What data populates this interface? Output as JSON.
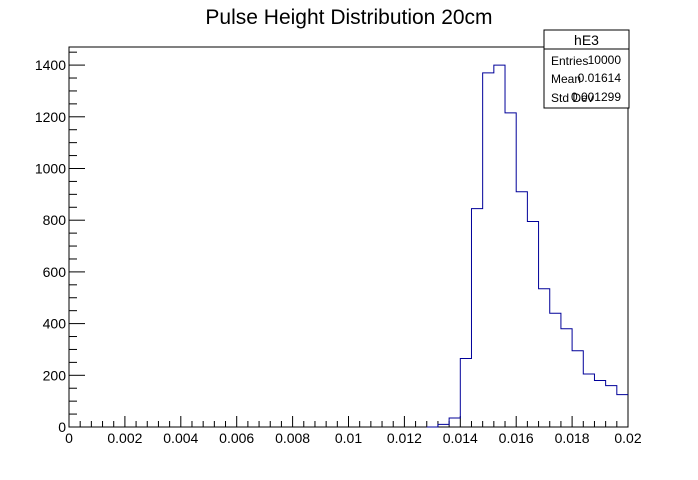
{
  "chart_data": {
    "type": "histogram",
    "title": "Pulse Height Distribution 20cm",
    "xlabel": "",
    "ylabel": "",
    "xlim": [
      0,
      0.02
    ],
    "ylim": [
      0,
      1470
    ],
    "grid": false,
    "x_ticks": [
      0,
      0.002,
      0.004,
      0.006,
      0.008,
      0.01,
      0.012,
      0.014,
      0.016,
      0.018,
      0.02
    ],
    "x_tick_labels": [
      "0",
      "0.002",
      "0.004",
      "0.006",
      "0.008",
      "0.01",
      "0.012",
      "0.014",
      "0.016",
      "0.018",
      "0.02"
    ],
    "y_ticks": [
      0,
      200,
      400,
      600,
      800,
      1000,
      1200,
      1400
    ],
    "y_tick_labels": [
      "0",
      "200",
      "400",
      "600",
      "800",
      "1000",
      "1200",
      "1400"
    ],
    "bin_width": 0.0004,
    "bins": [
      {
        "x": 0.0132,
        "value": 0
      },
      {
        "x": 0.0136,
        "value": 10
      },
      {
        "x": 0.014,
        "value": 35
      },
      {
        "x": 0.0144,
        "value": 265
      },
      {
        "x": 0.0148,
        "value": 845
      },
      {
        "x": 0.0152,
        "value": 1370
      },
      {
        "x": 0.0156,
        "value": 1400
      },
      {
        "x": 0.016,
        "value": 1215
      },
      {
        "x": 0.0164,
        "value": 910
      },
      {
        "x": 0.0168,
        "value": 795
      },
      {
        "x": 0.0172,
        "value": 535
      },
      {
        "x": 0.0176,
        "value": 440
      },
      {
        "x": 0.018,
        "value": 380
      },
      {
        "x": 0.0184,
        "value": 295
      },
      {
        "x": 0.0188,
        "value": 205
      },
      {
        "x": 0.0192,
        "value": 180
      },
      {
        "x": 0.0196,
        "value": 160
      },
      {
        "x": 0.02,
        "value": 125
      }
    ],
    "line_color": "#000099",
    "stats_box": {
      "name": "hE3",
      "rows": [
        {
          "label": "Entries",
          "value": "10000"
        },
        {
          "label": "Mean",
          "value": "0.01614"
        },
        {
          "label": "Std Dev",
          "value": "0.001299"
        }
      ]
    }
  }
}
